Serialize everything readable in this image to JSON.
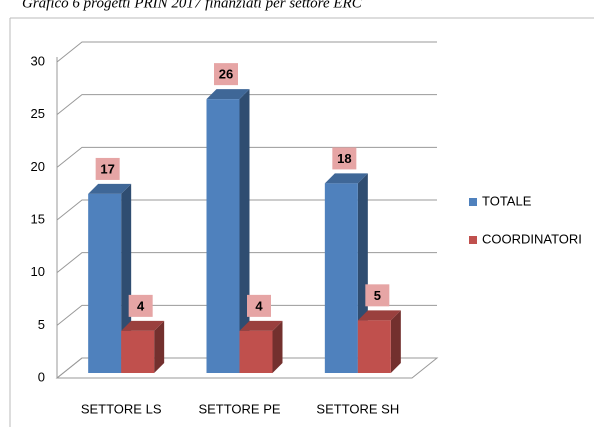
{
  "chart_data": {
    "type": "bar3d",
    "title": "Grafico 6 progetti PRIN 2017 finanziati per settore ERC",
    "categories": [
      "SETTORE LS",
      "SETTORE PE",
      "SETTORE SH"
    ],
    "series": [
      {
        "name": "TOTALE",
        "color": "#4f81bd",
        "values": [
          17,
          26,
          18
        ]
      },
      {
        "name": "COORDINATORI",
        "color": "#c0504d",
        "values": [
          4,
          4,
          5
        ]
      }
    ],
    "ylim": [
      0,
      30
    ],
    "yticks": [
      0,
      5,
      10,
      15,
      20,
      25,
      30
    ],
    "grid": true,
    "legend": "right"
  }
}
